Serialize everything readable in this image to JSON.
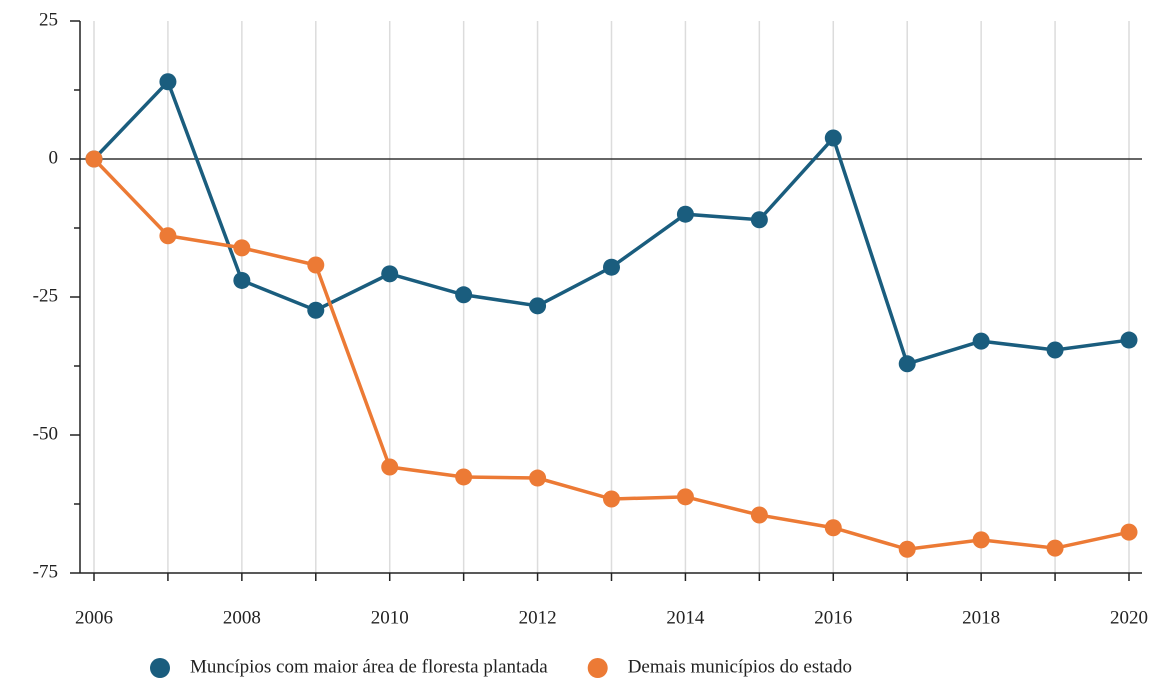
{
  "chart_data": {
    "type": "line",
    "x": [
      2006,
      2007,
      2008,
      2009,
      2010,
      2011,
      2012,
      2013,
      2014,
      2015,
      2016,
      2017,
      2018,
      2019,
      2020
    ],
    "series": [
      {
        "name": "Muncípios com maior área de floresta plantada",
        "color": "#1a5d7e",
        "values": [
          0,
          14,
          -22,
          -27.4,
          -20.8,
          -24.6,
          -26.6,
          -19.6,
          -10,
          -11,
          3.8,
          -37.1,
          -33,
          -34.6,
          -32.8
        ]
      },
      {
        "name": "Demais municípios do estado",
        "color": "#ec7a35",
        "values": [
          0,
          -13.9,
          -16.1,
          -19.2,
          -55.8,
          -57.6,
          -57.8,
          -61.6,
          -61.2,
          -64.5,
          -66.8,
          -70.7,
          -69,
          -70.5,
          -67.6
        ]
      }
    ],
    "xlim": [
      2006,
      2020
    ],
    "xticks": [
      2006,
      2008,
      2010,
      2012,
      2014,
      2016,
      2018,
      2020
    ],
    "ylim": [
      -75,
      25
    ],
    "yticks": [
      25,
      0,
      -25,
      -50,
      -75
    ],
    "grid": true,
    "legend": "bottom"
  }
}
